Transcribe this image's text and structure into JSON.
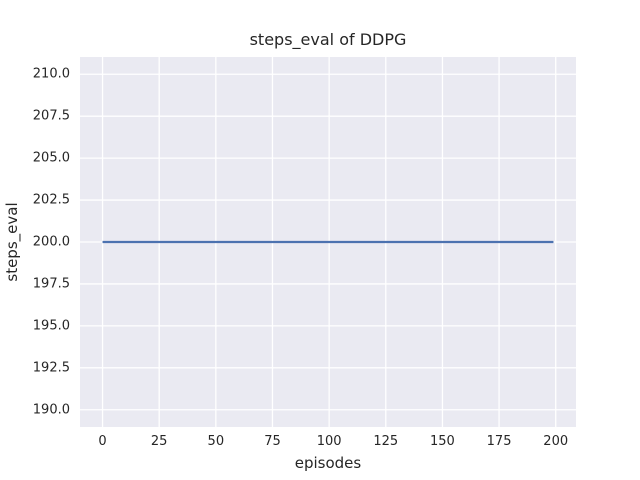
{
  "chart_data": {
    "type": "line",
    "title": "steps_eval of DDPG",
    "xlabel": "episodes",
    "ylabel": "steps_eval",
    "series": [
      {
        "name": "steps_eval",
        "color": "#4C72B0",
        "points": [
          [
            0,
            200
          ],
          [
            199,
            200
          ]
        ],
        "description": "constant value 200 for every episode from 0 to 199"
      }
    ],
    "x_ticks": [
      0,
      25,
      50,
      75,
      100,
      125,
      150,
      175,
      200
    ],
    "x_tick_labels": [
      "0",
      "25",
      "50",
      "75",
      "100",
      "125",
      "150",
      "175",
      "200"
    ],
    "y_ticks": [
      190.0,
      192.5,
      195.0,
      197.5,
      200.0,
      202.5,
      205.0,
      207.5,
      210.0
    ],
    "y_tick_labels": [
      "190.0",
      "192.5",
      "195.0",
      "197.5",
      "200.0",
      "202.5",
      "205.0",
      "207.5",
      "210.0"
    ],
    "xlim": [
      -9.95,
      208.95
    ],
    "ylim": [
      188.97,
      211.03
    ],
    "grid": true,
    "legend": false,
    "style": {
      "figure_background": "#FFFFFF",
      "axes_background": "#EAEAF2",
      "grid_color": "#FFFFFF",
      "text_color": "#262626",
      "line_color": "#4C72B0",
      "line_width": 2.2,
      "grid_line_width": 1.3
    }
  }
}
